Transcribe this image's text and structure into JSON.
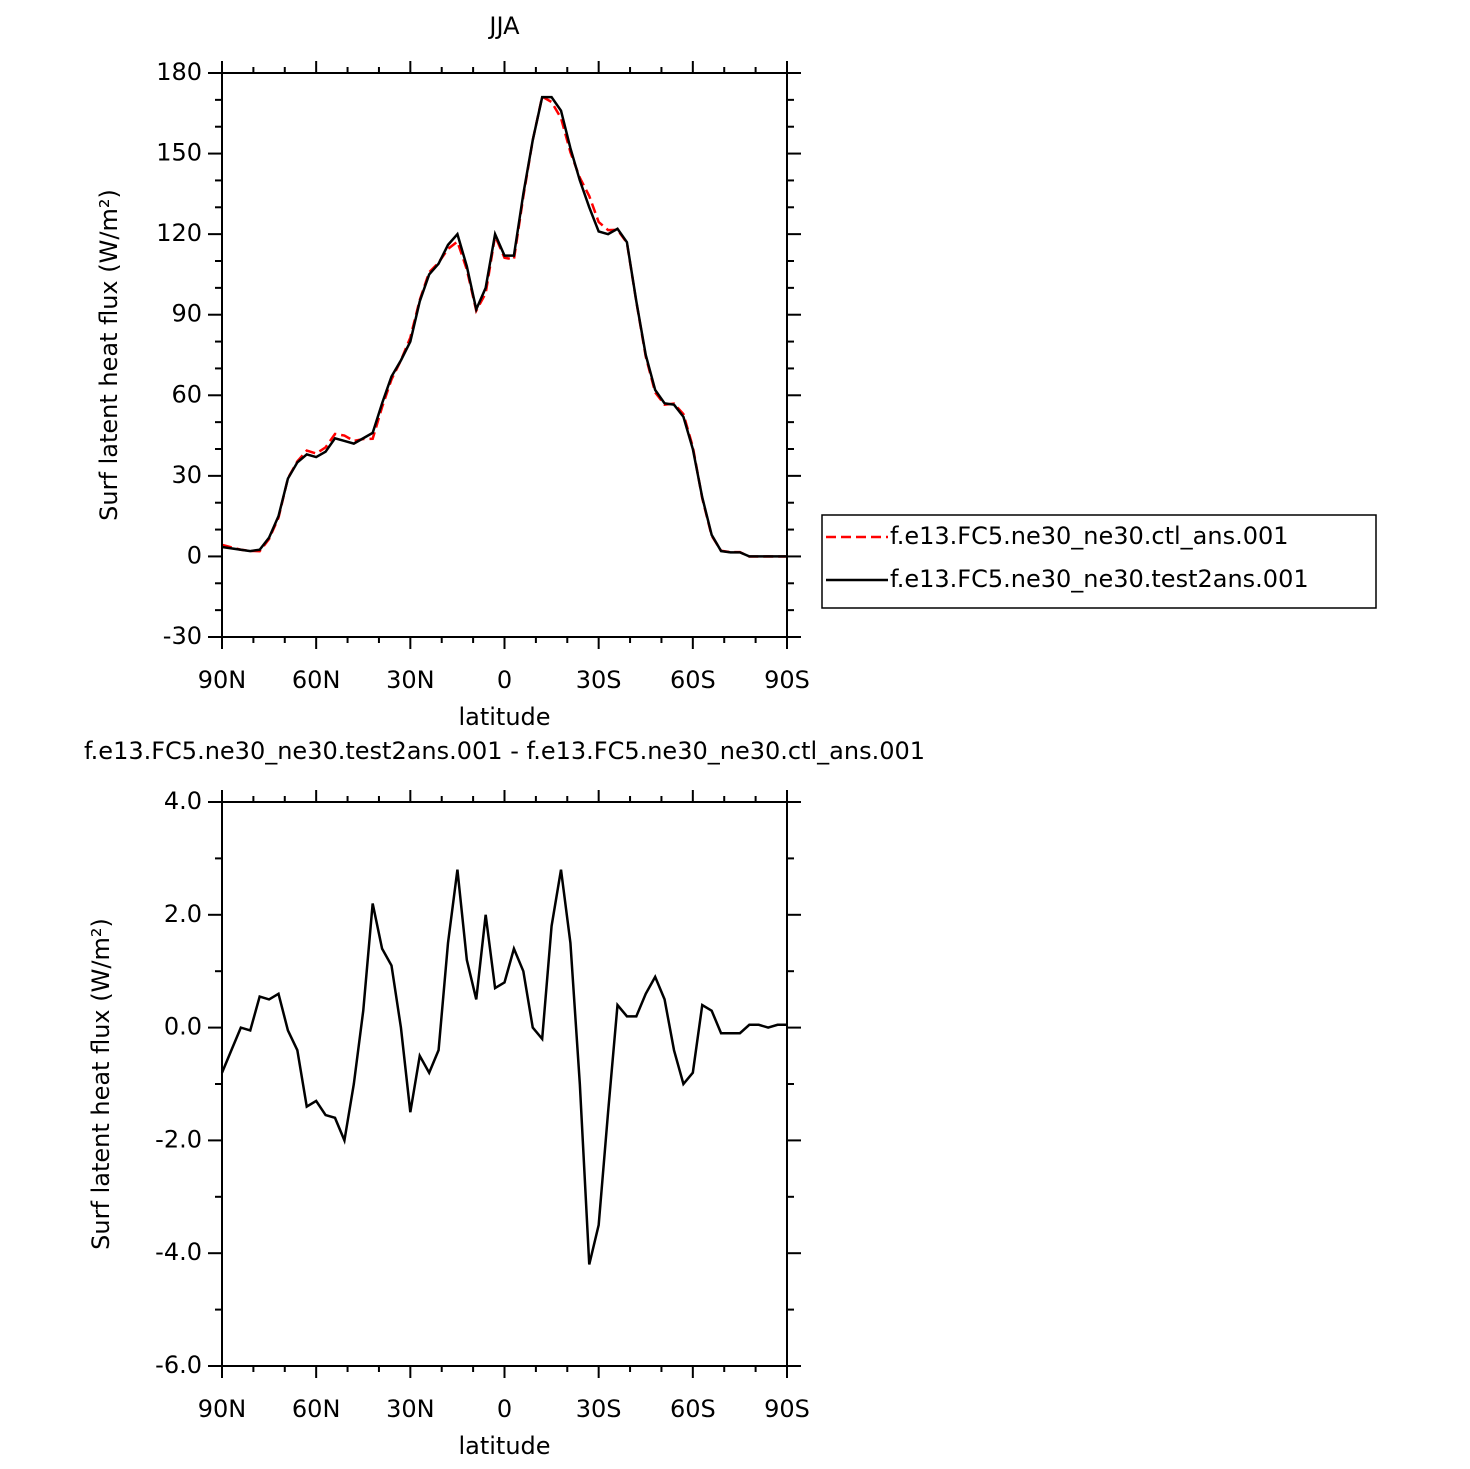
{
  "chart_data": [
    {
      "type": "line",
      "title": "JJA",
      "xlabel": "latitude",
      "ylabel": "Surf latent heat flux (W/m²)",
      "x": [
        90,
        87,
        84,
        81,
        78,
        75,
        72,
        69,
        66,
        63,
        60,
        57,
        54,
        51,
        48,
        45,
        42,
        39,
        36,
        33,
        30,
        27,
        24,
        21,
        18,
        15,
        12,
        9,
        6,
        3,
        0,
        -3,
        -6,
        -9,
        -12,
        -15,
        -18,
        -21,
        -24,
        -27,
        -30,
        -33,
        -36,
        -39,
        -42,
        -45,
        -48,
        -51,
        -54,
        -57,
        -60,
        -63,
        -66,
        -69,
        -72,
        -75,
        -78,
        -81,
        -84,
        -87,
        -90
      ],
      "series": [
        {
          "name": "f.e13.FC5.ne30_ne30.ctl_ans.001",
          "color": "#ff0000",
          "dashed": true,
          "values": [
            4.3,
            3.4,
            2.5,
            2.05,
            1.95,
            6.5,
            14.4,
            29.1,
            35.4,
            39.4,
            38.3,
            40.6,
            45.6,
            45,
            43,
            43.7,
            43.8,
            55.6,
            65.9,
            73,
            81.5,
            95.5,
            105.8,
            109.4,
            114.5,
            117.2,
            106.8,
            91.5,
            98,
            119.3,
            111.2,
            110.6,
            134,
            155,
            171.2,
            169.2,
            163.2,
            150.5,
            141,
            134.2,
            124.5,
            121.5,
            121.6,
            116.8,
            94.8,
            74.4,
            61.1,
            56.5,
            56.9,
            53,
            40.8,
            21.6,
            7.7,
            2.1,
            1.6,
            1.6,
            -0.05,
            -0.05,
            0,
            -0.05,
            -0.05
          ]
        },
        {
          "name": "f.e13.FC5.ne30_ne30.test2ans.001",
          "color": "#000000",
          "dashed": false,
          "values": [
            3.5,
            3,
            2.5,
            2,
            2.5,
            7,
            15,
            29,
            35,
            38,
            37,
            39,
            44,
            43,
            42,
            44,
            46,
            57,
            67,
            73,
            80,
            95,
            105,
            109,
            116,
            120,
            108,
            92,
            100,
            120,
            112,
            112,
            135,
            155,
            171,
            171,
            166,
            152,
            140,
            130,
            121,
            120,
            122,
            117,
            95,
            75,
            62,
            57,
            56.5,
            52,
            40,
            22,
            8,
            2,
            1.5,
            1.5,
            0,
            0,
            0,
            0,
            0
          ]
        }
      ],
      "xlim": [
        90,
        -90
      ],
      "xticks": [
        {
          "value": 90,
          "label": "90N"
        },
        {
          "value": 60,
          "label": "60N"
        },
        {
          "value": 30,
          "label": "30N"
        },
        0,
        {
          "value": -30,
          "label": "30S"
        },
        {
          "value": -60,
          "label": "60S"
        },
        {
          "value": -90,
          "label": "90S"
        }
      ],
      "xminorticks": [
        80,
        70,
        50,
        40,
        20,
        10,
        -10,
        -20,
        -40,
        -50,
        -70,
        -80
      ],
      "ylim": [
        -30,
        180
      ],
      "yticks": [
        -30,
        0,
        30,
        60,
        90,
        120,
        150,
        180
      ],
      "yminorticks": [
        -20,
        -10,
        10,
        20,
        40,
        50,
        70,
        80,
        100,
        110,
        130,
        140,
        160,
        170
      ],
      "legend": "right"
    },
    {
      "type": "line",
      "title": "f.e13.FC5.ne30_ne30.test2ans.001 - f.e13.FC5.ne30_ne30.ctl_ans.001",
      "xlabel": "latitude",
      "ylabel": "Surf latent heat flux (W/m²)",
      "x": [
        90,
        87,
        84,
        81,
        78,
        75,
        72,
        69,
        66,
        63,
        60,
        57,
        54,
        51,
        48,
        45,
        42,
        39,
        36,
        33,
        30,
        27,
        24,
        21,
        18,
        15,
        12,
        9,
        6,
        3,
        0,
        -3,
        -6,
        -9,
        -12,
        -15,
        -18,
        -21,
        -24,
        -27,
        -30,
        -33,
        -36,
        -39,
        -42,
        -45,
        -48,
        -51,
        -54,
        -57,
        -60,
        -63,
        -66,
        -69,
        -72,
        -75,
        -78,
        -81,
        -84,
        -87,
        -90
      ],
      "series": [
        {
          "color": "#000000",
          "dashed": false,
          "values": [
            -0.8,
            -0.4,
            0,
            -0.05,
            0.55,
            0.5,
            0.6,
            -0.05,
            -0.4,
            -1.4,
            -1.3,
            -1.55,
            -1.6,
            -2,
            -1,
            0.3,
            2.2,
            1.4,
            1.1,
            0,
            -1.5,
            -0.5,
            -0.8,
            -0.4,
            1.5,
            2.8,
            1.2,
            0.5,
            2,
            0.7,
            0.8,
            1.4,
            1,
            0,
            -0.2,
            1.8,
            2.8,
            1.5,
            -1,
            -4.2,
            -3.5,
            -1.5,
            0.4,
            0.2,
            0.2,
            0.6,
            0.9,
            0.5,
            -0.4,
            -1,
            -0.8,
            0.4,
            0.3,
            -0.1,
            -0.1,
            -0.1,
            0.05,
            0.05,
            0,
            0.05,
            0.05
          ]
        }
      ],
      "xlim": [
        90,
        -90
      ],
      "xticks": [
        {
          "value": 90,
          "label": "90N"
        },
        {
          "value": 60,
          "label": "60N"
        },
        {
          "value": 30,
          "label": "30N"
        },
        0,
        {
          "value": -30,
          "label": "30S"
        },
        {
          "value": -60,
          "label": "60S"
        },
        {
          "value": -90,
          "label": "90S"
        }
      ],
      "xminorticks": [
        80,
        70,
        50,
        40,
        20,
        10,
        -10,
        -20,
        -40,
        -50,
        -70,
        -80
      ],
      "ylim": [
        -6,
        4
      ],
      "yticks": [
        {
          "value": -6,
          "label": "-6.0"
        },
        {
          "value": -4,
          "label": "-4.0"
        },
        {
          "value": -2,
          "label": "-2.0"
        },
        {
          "value": 0,
          "label": "0.0"
        },
        {
          "value": 2,
          "label": "2.0"
        },
        {
          "value": 4,
          "label": "4.0"
        }
      ],
      "yminorticks": [
        -5,
        -3,
        -1,
        1,
        3
      ]
    }
  ]
}
